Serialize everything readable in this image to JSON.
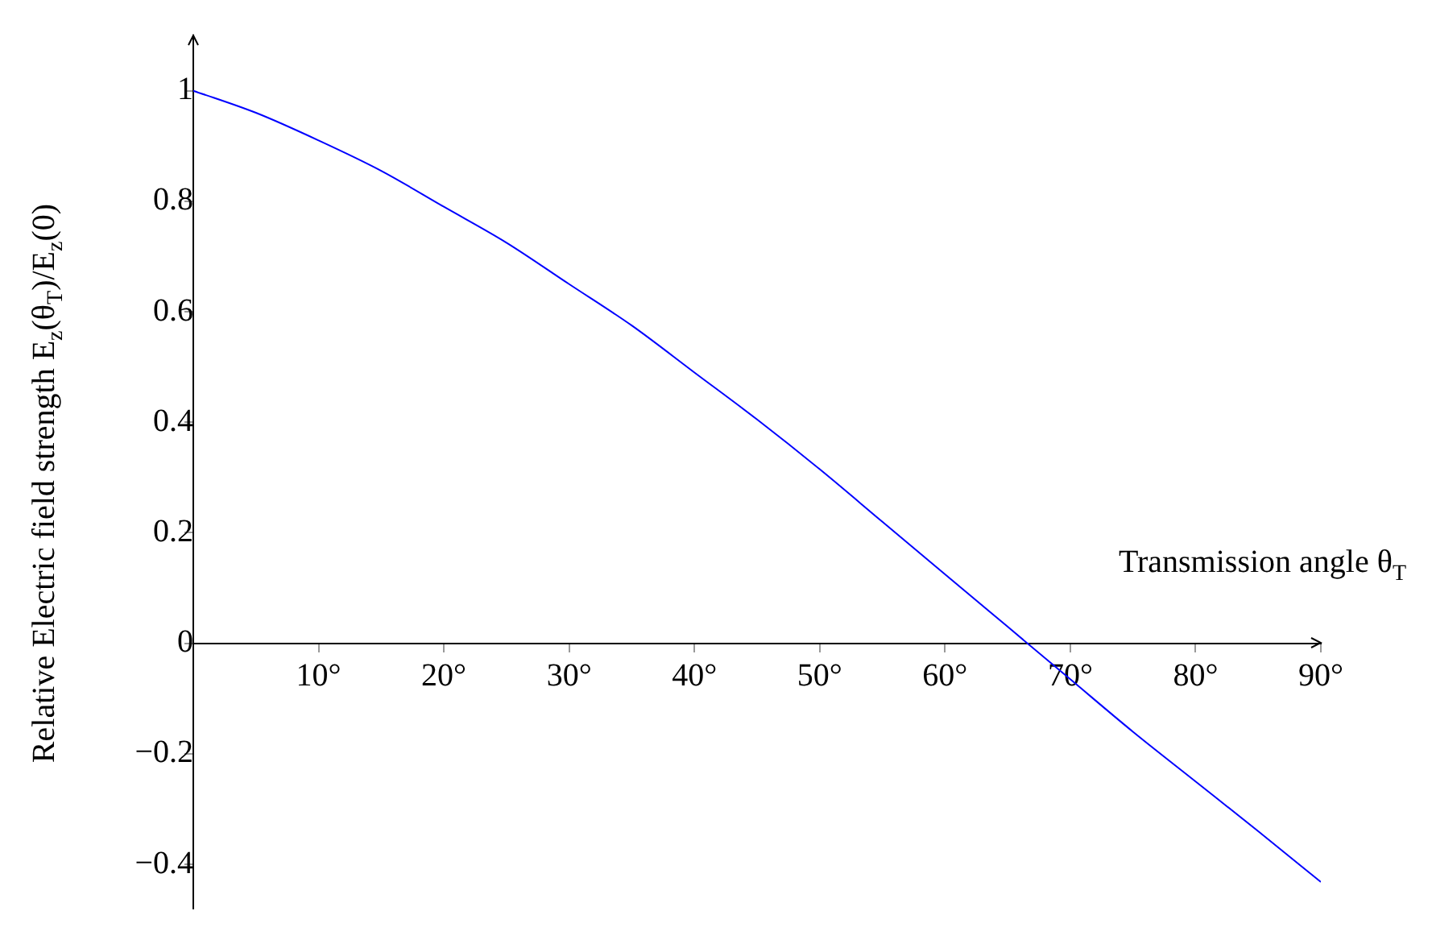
{
  "chart_data": {
    "type": "line",
    "xlabel": "Transmission angle θ$_{T}$",
    "ylabel": "Relative Electric field strength E$_{z}$(θ$_{T}$)/E$_{z}$(0)",
    "x": [
      0,
      5,
      10,
      15,
      20,
      25,
      30,
      35,
      40,
      45,
      50,
      55,
      60,
      65,
      70,
      75,
      80,
      85,
      90
    ],
    "series": [
      {
        "color": "#0000ff",
        "values": [
          1,
          0.96,
          0.91,
          0.855,
          0.79,
          0.725,
          0.65,
          0.575,
          0.49,
          0.405,
          0.315,
          0.22,
          0.125,
          0.03,
          -0.065,
          -0.16,
          -0.25,
          -0.34,
          -0.432
        ]
      }
    ],
    "xlim": [
      0,
      90
    ],
    "ylim": [
      -0.48,
      1.1
    ],
    "xticks": [
      {
        "value": 10,
        "label": "10°"
      },
      {
        "value": 20,
        "label": "20°"
      },
      {
        "value": 30,
        "label": "30°"
      },
      {
        "value": 40,
        "label": "40°"
      },
      {
        "value": 50,
        "label": "50°"
      },
      {
        "value": 60,
        "label": "60°"
      },
      {
        "value": 70,
        "label": "70°"
      },
      {
        "value": 80,
        "label": "80°"
      },
      {
        "value": 90,
        "label": "90°"
      }
    ],
    "yticks": [
      {
        "value": -0.4,
        "label": "−0.4"
      },
      {
        "value": -0.2,
        "label": "−0.2"
      },
      0,
      0.2,
      0.4,
      0.6,
      0.8,
      1
    ],
    "marker": "none",
    "line_style": "solid",
    "grid": false,
    "legend": false
  }
}
